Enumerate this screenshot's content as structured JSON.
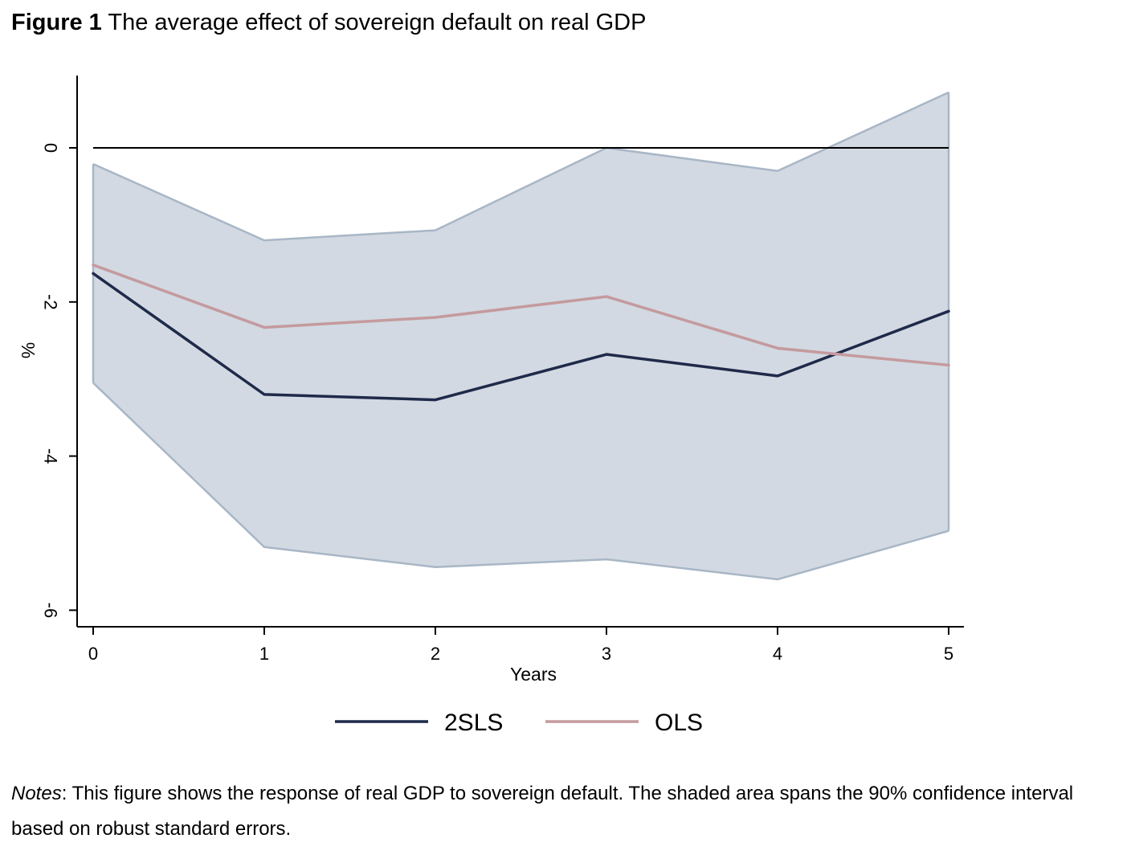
{
  "figure": {
    "label": "Figure 1",
    "title": "The average effect of sovereign default on real GDP"
  },
  "notes": {
    "label": "Notes",
    "text": ": This figure shows the response of real GDP to sovereign default. The shaded area spans the 90% confidence interval based on robust standard errors."
  },
  "chart_data": {
    "type": "line",
    "xlabel": "Years",
    "ylabel": "%",
    "x": [
      0,
      1,
      2,
      3,
      4,
      5
    ],
    "xticks": [
      "0",
      "1",
      "2",
      "3",
      "4",
      "5"
    ],
    "yticks": [
      0,
      -2,
      -4,
      -6
    ],
    "ytick_labels": [
      "0",
      "-2",
      "-4",
      "-6"
    ],
    "xlim": [
      0,
      5
    ],
    "ylim": [
      -6.2,
      0.95
    ],
    "zero_line": 0,
    "series": [
      {
        "name": "2SLS",
        "values": [
          -1.63,
          -3.2,
          -3.27,
          -2.68,
          -2.96,
          -2.12
        ],
        "color": "#1f2a4a"
      },
      {
        "name": "OLS",
        "values": [
          -1.52,
          -2.33,
          -2.2,
          -1.93,
          -2.6,
          -2.82
        ],
        "color": "#c49a9e"
      }
    ],
    "confidence_band": {
      "upper": [
        -0.21,
        -1.2,
        -1.07,
        0.0,
        -0.3,
        0.72
      ],
      "lower": [
        -3.05,
        -5.18,
        -5.44,
        -5.34,
        -5.6,
        -4.97
      ],
      "fill": "#d2d9e2",
      "stroke": "#a8b6c6"
    },
    "grid": false,
    "legend_position": "bottom"
  }
}
